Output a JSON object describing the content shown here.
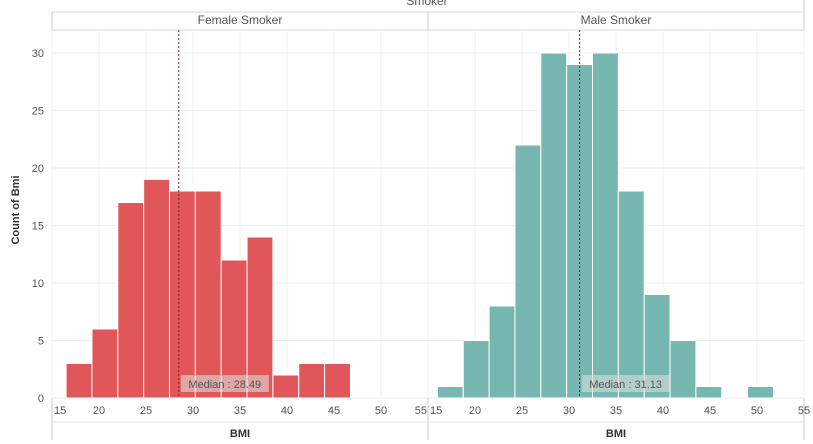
{
  "chart_data": {
    "type": "bar",
    "title": "Smoker",
    "ylabel": "Count of Bmi",
    "ylim": [
      0,
      32
    ],
    "y_ticks": [
      0,
      5,
      10,
      15,
      20,
      25,
      30
    ],
    "grid": true,
    "bin_width": 2.75,
    "panels": [
      {
        "name": "Female Smoker",
        "color": "#e15759",
        "xlabel": "BMI",
        "xlim": [
          15,
          55
        ],
        "x_ticks": [
          15,
          20,
          25,
          30,
          35,
          40,
          45,
          50,
          55
        ],
        "bins": [
          {
            "start": 16.5,
            "count": 3
          },
          {
            "start": 19.25,
            "count": 6
          },
          {
            "start": 22.0,
            "count": 17
          },
          {
            "start": 24.75,
            "count": 19
          },
          {
            "start": 27.5,
            "count": 18
          },
          {
            "start": 30.25,
            "count": 18
          },
          {
            "start": 33.0,
            "count": 12
          },
          {
            "start": 35.75,
            "count": 14
          },
          {
            "start": 38.5,
            "count": 2
          },
          {
            "start": 41.25,
            "count": 3
          },
          {
            "start": 44.0,
            "count": 3
          }
        ],
        "median": 28.49,
        "median_label": "Median : 28.49"
      },
      {
        "name": "Male Smoker",
        "color": "#76b7b2",
        "xlabel": "BMI",
        "xlim": [
          15,
          55
        ],
        "x_ticks": [
          15,
          20,
          25,
          30,
          35,
          40,
          45,
          50,
          55
        ],
        "bins": [
          {
            "start": 16.0,
            "count": 1
          },
          {
            "start": 18.75,
            "count": 5
          },
          {
            "start": 21.5,
            "count": 8
          },
          {
            "start": 24.25,
            "count": 22
          },
          {
            "start": 27.0,
            "count": 30
          },
          {
            "start": 29.75,
            "count": 29
          },
          {
            "start": 32.5,
            "count": 30
          },
          {
            "start": 35.25,
            "count": 18
          },
          {
            "start": 38.0,
            "count": 9
          },
          {
            "start": 40.75,
            "count": 5
          },
          {
            "start": 43.5,
            "count": 1
          },
          {
            "start": 49.0,
            "count": 1
          }
        ],
        "median": 31.13,
        "median_label": "Median : 31.13"
      }
    ]
  }
}
